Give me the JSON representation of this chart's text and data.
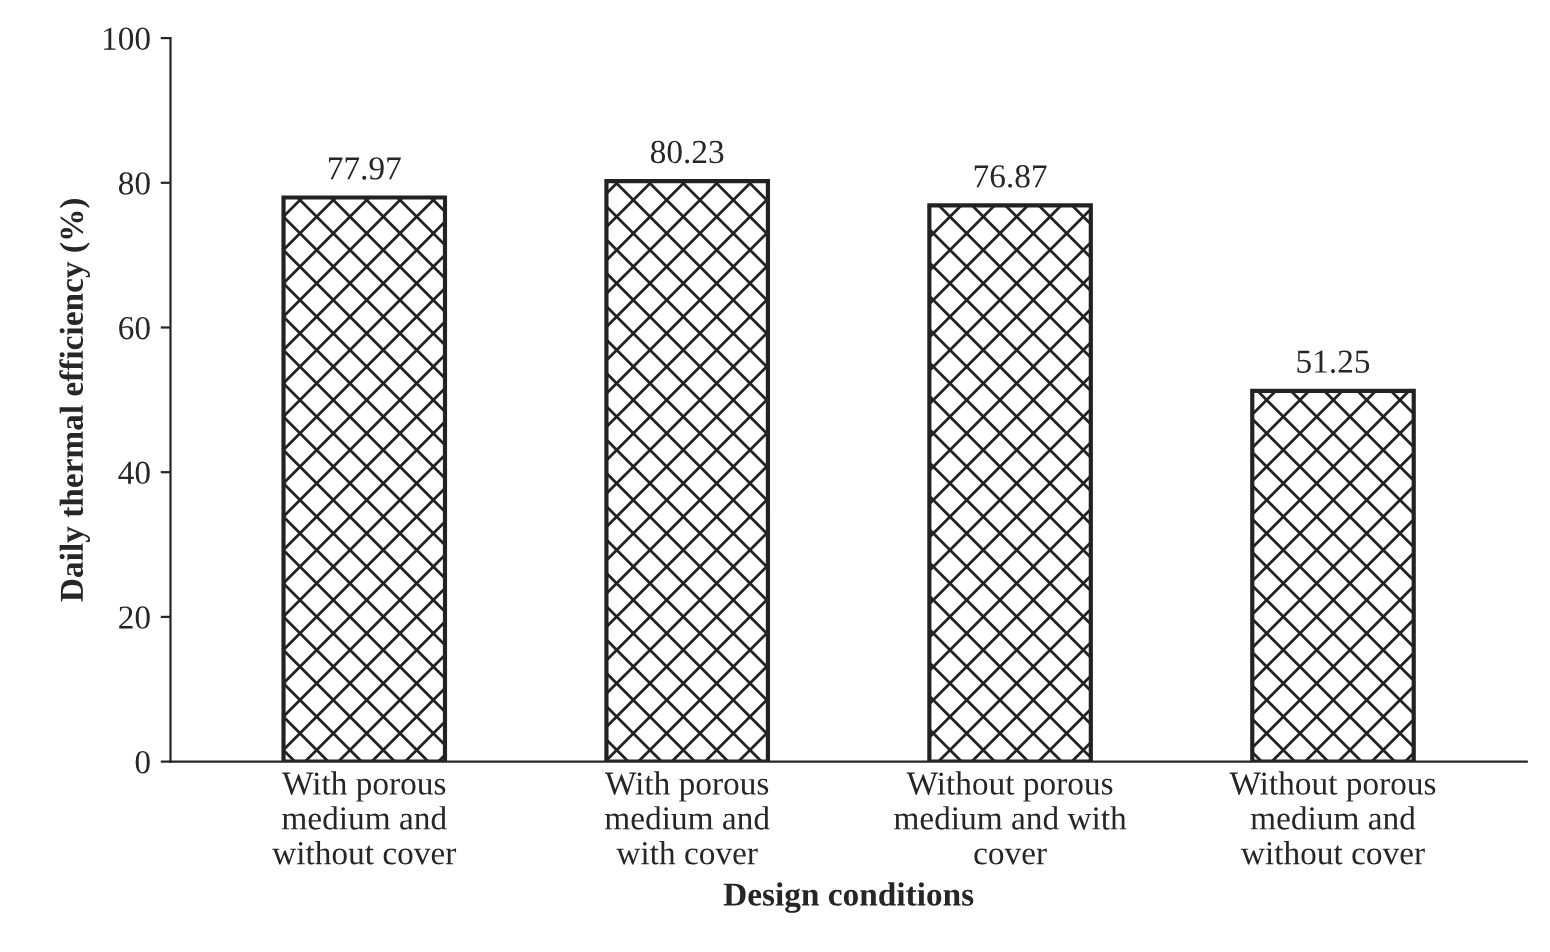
{
  "chart_data": {
    "type": "bar",
    "xlabel": "Design conditions",
    "ylabel": "Daily thermal efficiency (%)",
    "categories": [
      "With porous\nmedium and\nwithout cover",
      "With porous\nmedium and\nwith cover",
      "Without porous\nmedium and with\ncover",
      "Without porous\nmedium and\nwithout cover"
    ],
    "values": [
      77.97,
      80.23,
      76.87,
      51.25
    ],
    "color": "#222222",
    "data_labels": true,
    "ylim": [
      0,
      100
    ],
    "yticks": [
      0,
      20,
      40,
      60,
      80,
      100
    ],
    "grid": false,
    "legend": false
  }
}
